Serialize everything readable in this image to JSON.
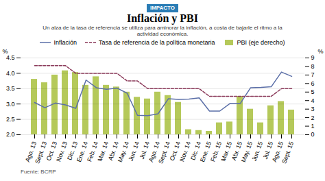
{
  "chart_data": {
    "type": "bar",
    "suptitle": "IMPACTO",
    "title": "Inflación y PBI",
    "subtitle": "Un alza de la tasa de referencia se utiliza para aminorar la inflación, a costa de bajarle el ritmo a la\nactividad económica.",
    "source": "Fuente: BCRP",
    "categories": [
      "Ago. 13",
      "Sept. 13",
      "Oct. 13",
      "Nov. 13",
      "Dic. 13",
      "Ene. 14",
      "Feb. 14",
      "Mar. 14",
      "Abr. 14",
      "May. 14",
      "Jun. 14",
      "Jul. 14",
      "Ago. 14",
      "Sept. 14",
      "Oct. 14",
      "Nov. 14",
      "Dic. 14",
      "Ene. 15",
      "Feb. 15",
      "Mar. 15",
      "Abr. 15",
      "May. 15",
      "Jun. 15",
      "Jul. 15",
      "Ago. 15",
      "Sept. 15"
    ],
    "series": [
      {
        "name": "Inflación",
        "type": "line",
        "line_style": "solid",
        "color": "#5b6fa8",
        "values": [
          3.05,
          2.88,
          3.03,
          2.97,
          2.86,
          3.78,
          3.53,
          3.48,
          3.52,
          3.35,
          2.63,
          2.62,
          2.68,
          3.17,
          3.15,
          3.16,
          3.2,
          2.77,
          2.77,
          3.02,
          3.02,
          3.53,
          3.54,
          3.56,
          4.04,
          3.9
        ]
      },
      {
        "name": "Tasa de referencia de la política monetaria",
        "type": "line",
        "line_style": "dashed",
        "color": "#8b3a5a",
        "values": [
          4.25,
          4.25,
          4.25,
          4.25,
          4.0,
          4.0,
          4.0,
          4.0,
          4.0,
          3.75,
          3.75,
          3.5,
          3.5,
          3.5,
          3.5,
          3.5,
          3.5,
          3.25,
          3.25,
          3.25,
          3.25,
          3.25,
          3.25,
          3.25,
          3.5,
          3.5
        ]
      },
      {
        "name": "PBI (eje derecho)",
        "type": "bar",
        "axis": "y2",
        "color": "#b5c95a",
        "values": [
          6.5,
          6.1,
          7.0,
          7.5,
          7.3,
          5.8,
          6.8,
          5.8,
          5.6,
          5.0,
          4.4,
          4.2,
          5.0,
          4.6,
          3.8,
          0.6,
          0.5,
          0.4,
          1.4,
          1.5,
          4.5,
          3.0,
          1.4,
          3.4,
          3.9,
          2.9
        ]
      }
    ],
    "ylabel": "%",
    "y2label": "%",
    "ylim": [
      2.0,
      4.5
    ],
    "yticks": [
      {
        "value": 2.0,
        "label": "2.0"
      },
      2.5,
      {
        "value": 3.0,
        "label": "3.0"
      },
      3.5,
      {
        "value": 4.0,
        "label": "4.0"
      },
      4.5
    ],
    "y2lim": [
      0,
      9
    ],
    "y2ticks": [
      0,
      1,
      2,
      3,
      4,
      5,
      6,
      7,
      8,
      9
    ],
    "grid": true,
    "legend": "top"
  }
}
